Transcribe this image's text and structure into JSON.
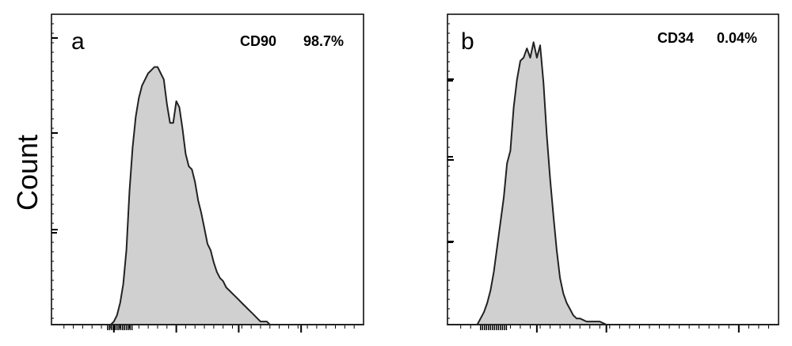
{
  "ylabel": "Count",
  "chart_data": [
    {
      "type": "area",
      "panel": "a",
      "marker": "CD90",
      "percentage": "98.7%",
      "xlim": [
        0,
        100
      ],
      "ylim": [
        0,
        100
      ],
      "x": [
        0,
        19,
        20,
        21,
        22,
        23,
        24,
        25,
        26,
        27,
        28,
        29,
        30,
        31,
        32,
        33,
        34,
        35,
        36,
        37,
        38,
        39,
        40,
        41,
        42,
        43,
        44,
        45,
        46,
        47,
        48,
        49,
        50,
        51,
        52,
        53,
        54,
        55,
        56,
        57,
        58,
        59,
        60,
        61,
        62,
        63,
        64,
        65,
        66,
        67,
        68,
        69,
        70,
        100
      ],
      "y": [
        0,
        0,
        1,
        3,
        7,
        13,
        24,
        43,
        57,
        67,
        73,
        77,
        79,
        81,
        82,
        83,
        83,
        81,
        79,
        71,
        65,
        65,
        72,
        70,
        63,
        55,
        51,
        50,
        46,
        40,
        36,
        31,
        26,
        24,
        20,
        17,
        15,
        14,
        12,
        11,
        10,
        9,
        8,
        7,
        6,
        5,
        4,
        3,
        2,
        1,
        1,
        1,
        0,
        0
      ]
    },
    {
      "type": "area",
      "panel": "b",
      "marker": "CD34",
      "percentage": "0.04%",
      "xlim": [
        0,
        100
      ],
      "ylim": [
        0,
        100
      ],
      "x": [
        0,
        9,
        10,
        11,
        12,
        13,
        14,
        15,
        16,
        17,
        18,
        19,
        20,
        21,
        22,
        23,
        24,
        25,
        26,
        27,
        28,
        29,
        30,
        31,
        32,
        33,
        34,
        35,
        36,
        37,
        38,
        39,
        40,
        42,
        44,
        46,
        48,
        50,
        100
      ],
      "y": [
        0,
        0,
        2,
        4,
        7,
        11,
        17,
        25,
        33,
        41,
        52,
        56,
        70,
        79,
        85,
        86,
        89,
        86,
        91,
        86,
        90,
        78,
        61,
        47,
        35,
        24,
        15,
        10,
        7,
        5,
        3,
        2,
        2,
        1,
        1,
        1,
        0,
        0,
        0
      ]
    }
  ]
}
